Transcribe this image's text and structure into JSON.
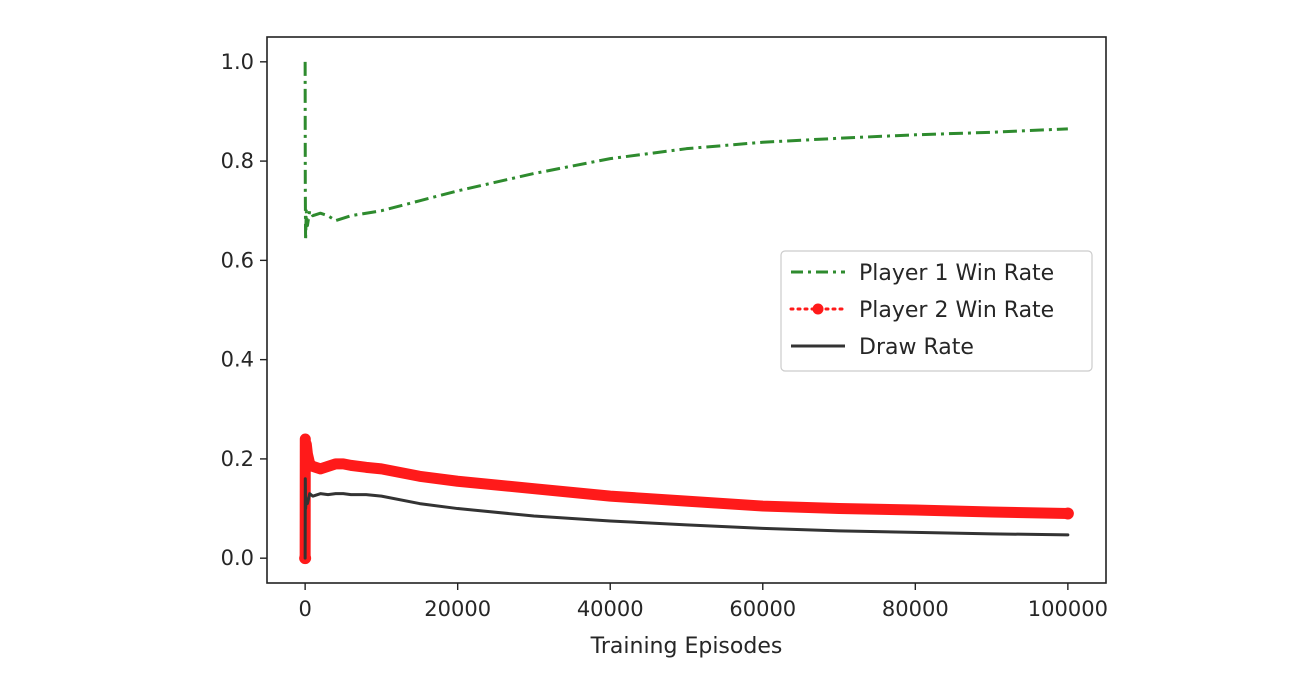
{
  "chart_data": {
    "type": "line",
    "title": "",
    "xlabel": "Training Episodes",
    "ylabel": "",
    "xlim": [
      -5000,
      105000
    ],
    "ylim": [
      -0.05,
      1.05
    ],
    "xticks": [
      0,
      20000,
      40000,
      60000,
      80000,
      100000
    ],
    "xtick_labels": [
      "0",
      "20000",
      "40000",
      "60000",
      "80000",
      "100000"
    ],
    "yticks": [
      0.0,
      0.2,
      0.4,
      0.6,
      0.8,
      1.0
    ],
    "ytick_labels": [
      "0.0",
      "0.2",
      "0.4",
      "0.6",
      "0.8",
      "1.0"
    ],
    "grid": false,
    "legend_position": "center-right",
    "series": [
      {
        "name": "Player 1 Win Rate",
        "color": "#2e8b2e",
        "style": "dash-dot",
        "x": [
          0,
          20,
          60,
          150,
          300,
          600,
          1000,
          2000,
          3000,
          4000,
          5000,
          6000,
          8000,
          10000,
          15000,
          20000,
          30000,
          40000,
          50000,
          60000,
          70000,
          80000,
          90000,
          100000
        ],
        "y": [
          1.0,
          0.75,
          0.64,
          0.7,
          0.67,
          0.7,
          0.69,
          0.695,
          0.69,
          0.68,
          0.685,
          0.69,
          0.695,
          0.7,
          0.72,
          0.74,
          0.775,
          0.805,
          0.825,
          0.838,
          0.846,
          0.853,
          0.858,
          0.865
        ]
      },
      {
        "name": "Player 2 Win Rate",
        "color": "#ff1a1a",
        "style": "dotted-marker",
        "x": [
          0,
          20,
          60,
          150,
          300,
          600,
          1000,
          2000,
          3000,
          4000,
          5000,
          6000,
          8000,
          10000,
          15000,
          20000,
          30000,
          40000,
          50000,
          60000,
          70000,
          80000,
          90000,
          100000
        ],
        "y": [
          0.0,
          0.24,
          0.2,
          0.23,
          0.21,
          0.19,
          0.185,
          0.18,
          0.185,
          0.19,
          0.19,
          0.187,
          0.183,
          0.18,
          0.165,
          0.155,
          0.14,
          0.125,
          0.115,
          0.105,
          0.1,
          0.097,
          0.093,
          0.09
        ]
      },
      {
        "name": "Draw Rate",
        "color": "#333333",
        "style": "solid",
        "x": [
          0,
          20,
          60,
          150,
          300,
          600,
          1000,
          2000,
          3000,
          4000,
          5000,
          6000,
          8000,
          10000,
          15000,
          20000,
          30000,
          40000,
          50000,
          60000,
          70000,
          80000,
          90000,
          100000
        ],
        "y": [
          0.0,
          0.16,
          0.1,
          0.12,
          0.11,
          0.13,
          0.125,
          0.13,
          0.128,
          0.13,
          0.13,
          0.128,
          0.128,
          0.125,
          0.11,
          0.1,
          0.085,
          0.075,
          0.067,
          0.06,
          0.055,
          0.052,
          0.049,
          0.047
        ]
      }
    ]
  }
}
